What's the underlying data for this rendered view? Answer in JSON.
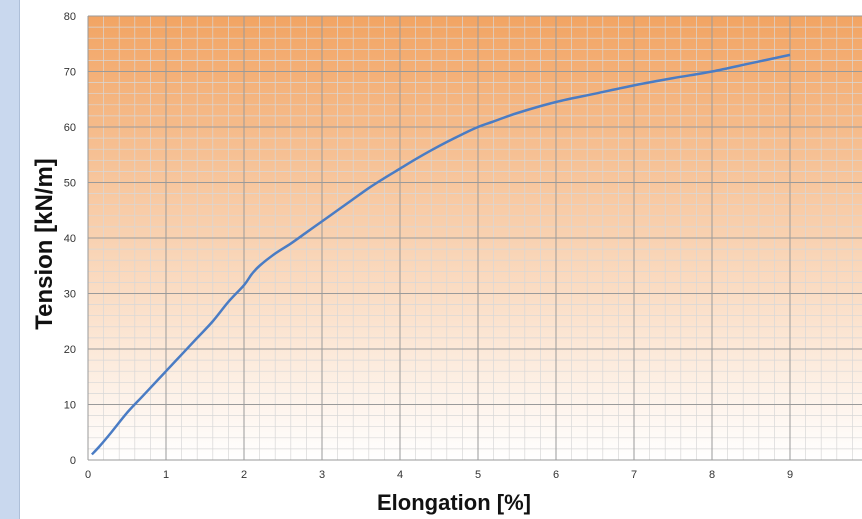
{
  "chart_data": {
    "type": "line",
    "title": "",
    "xlabel": "Elongation [%]",
    "ylabel": "Tension [kN/m]",
    "xlim": [
      0,
      10
    ],
    "ylim": [
      0,
      80
    ],
    "xticks": [
      0,
      1,
      2,
      3,
      4,
      5,
      6,
      7,
      8,
      9
    ],
    "yticks": [
      0,
      10,
      20,
      30,
      40,
      50,
      60,
      70,
      80
    ],
    "grid": true,
    "minor_grid": true,
    "background_gradient": [
      "#f2a463",
      "#ffffff"
    ],
    "series": [
      {
        "color": "#4a7cc4",
        "x": [
          0.05,
          0.15,
          0.3,
          0.5,
          0.7,
          0.9,
          1.0,
          1.2,
          1.4,
          1.6,
          1.8,
          2.0,
          2.1,
          2.2,
          2.4,
          2.6,
          2.8,
          3.0,
          3.2,
          3.4,
          3.6,
          3.8,
          4.0,
          4.2,
          4.4,
          4.6,
          4.8,
          5.0,
          5.2,
          5.5,
          6.0,
          6.5,
          7.0,
          7.5,
          8.0,
          8.5,
          9.0
        ],
        "y": [
          1,
          2.5,
          5,
          8.5,
          11.5,
          14.5,
          16,
          19,
          22,
          25,
          28.5,
          31.5,
          33.5,
          35,
          37.2,
          39,
          41,
          43,
          45,
          47,
          49,
          50.8,
          52.5,
          54.2,
          55.8,
          57.3,
          58.7,
          60,
          61,
          62.5,
          64.5,
          66,
          67.5,
          68.8,
          70,
          71.5,
          73
        ]
      }
    ]
  }
}
